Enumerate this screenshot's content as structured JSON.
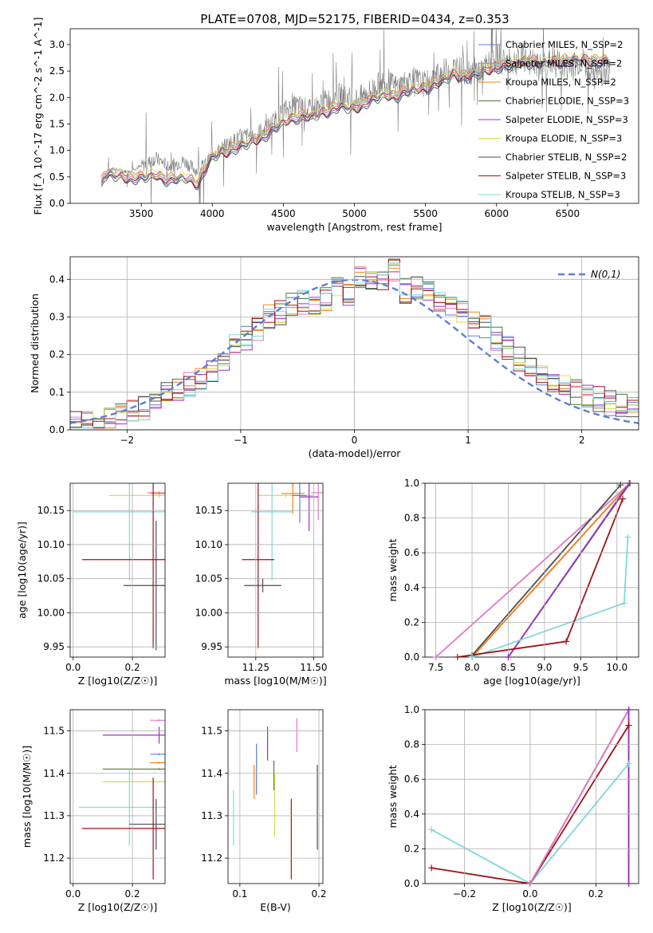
{
  "figure_title": "PLATE=0708, MJD=52175, FIBERID=0434, z=0.353",
  "model_colors": {
    "Chabrier MILES": "#5b7fd6",
    "Salpeter MILES": "#e377c2",
    "Kroupa MILES": "#ff7f0e",
    "Chabrier ELODIE": "#4b7a3a",
    "Salpeter ELODIE": "#9b30c8",
    "Kroupa ELODIE": "#d4e04a",
    "Chabrier STELIB": "#4d4d4d",
    "Salpeter STELIB": "#a50f15",
    "Kroupa STELIB": "#7fd8dc"
  },
  "chart_data": [
    {
      "id": "spectrum",
      "type": "line",
      "title": "PLATE=0708, MJD=52175, FIBERID=0434, z=0.353",
      "xlabel": "wavelength [Angstrom, rest frame]",
      "ylabel": "Flux [f_λ 10^-17 erg cm^-2 s^-1 A^-1]",
      "xlim": [
        3000,
        7000
      ],
      "ylim": [
        0,
        3.3
      ],
      "xticks": [
        3500,
        4000,
        4500,
        5000,
        5500,
        6000,
        6500
      ],
      "yticks": [
        0.0,
        0.5,
        1.0,
        1.5,
        2.0,
        2.5,
        3.0
      ],
      "grid": false,
      "legend_position": "right",
      "data_color": "#808080",
      "data_x": [
        3240,
        3300,
        3400,
        3500,
        3600,
        3700,
        3800,
        3900,
        4000,
        4100,
        4200,
        4300,
        4400,
        4500,
        4600,
        4700,
        4800,
        4900,
        5000,
        5100,
        5200,
        5300,
        5400,
        5500,
        5600,
        5700,
        5800,
        5900,
        6000,
        6100,
        6200,
        6300,
        6400,
        6500,
        6600,
        6700,
        6800
      ],
      "data_y": [
        0.55,
        0.65,
        0.6,
        0.7,
        0.85,
        0.7,
        0.8,
        0.6,
        0.9,
        1.1,
        1.25,
        1.3,
        1.45,
        1.75,
        1.85,
        1.75,
        1.95,
        2.05,
        1.95,
        2.1,
        2.3,
        2.2,
        2.35,
        2.25,
        2.45,
        2.55,
        2.5,
        2.5,
        2.75,
        2.65,
        2.75,
        2.55,
        2.7,
        2.55,
        2.7,
        2.45,
        2.5
      ],
      "series": [
        {
          "name": "Chabrier MILES, N_SSP=2",
          "color": "#5b7fd6"
        },
        {
          "name": "Salpeter MILES, N_SSP=2",
          "color": "#e377c2"
        },
        {
          "name": "Kroupa MILES, N_SSP=2",
          "color": "#ff7f0e"
        },
        {
          "name": "Chabrier ELODIE, N_SSP=3",
          "color": "#4b7a3a"
        },
        {
          "name": "Salpeter ELODIE, N_SSP=3",
          "color": "#9b30c8"
        },
        {
          "name": "Kroupa ELODIE, N_SSP=3",
          "color": "#d4e04a"
        },
        {
          "name": "Chabrier STELIB, N_SSP=2",
          "color": "#4d4d4d"
        },
        {
          "name": "Salpeter STELIB, N_SSP=3",
          "color": "#a50f15"
        },
        {
          "name": "Kroupa STELIB, N_SSP=3",
          "color": "#7fd8dc"
        }
      ],
      "model_x": [
        3220,
        3240,
        3300,
        3400,
        3500,
        3600,
        3700,
        3800,
        3900,
        4000,
        4100,
        4200,
        4300,
        4400,
        4500,
        4600,
        4700,
        4800,
        4900,
        5000,
        5100,
        5200,
        5300,
        5400,
        5500,
        5600,
        5700,
        5800,
        5900,
        6000,
        6100,
        6200,
        6300,
        6400,
        6500,
        6600,
        6700,
        6800
      ],
      "model_y": [
        0.4,
        0.55,
        0.55,
        0.5,
        0.5,
        0.55,
        0.45,
        0.5,
        0.4,
        0.9,
        1.0,
        1.1,
        1.2,
        1.35,
        1.55,
        1.65,
        1.65,
        1.75,
        1.85,
        1.8,
        1.95,
        2.05,
        2.05,
        2.15,
        2.2,
        2.3,
        2.45,
        2.4,
        2.5,
        2.6,
        2.6,
        2.7,
        2.65,
        2.7,
        2.7,
        2.75,
        2.7,
        2.7
      ]
    },
    {
      "id": "residuals",
      "type": "line",
      "xlabel": "(data-model)/error",
      "ylabel": "Normed distribution",
      "xlim": [
        -2.5,
        2.5
      ],
      "ylim": [
        0,
        0.46
      ],
      "xticks": [
        -2,
        -1,
        0,
        1,
        2
      ],
      "yticks": [
        0.0,
        0.1,
        0.2,
        0.3,
        0.4
      ],
      "grid": true,
      "legend_position": "top-right",
      "legend_label": "N(0,1)",
      "gauss_color": "#5b7fd6",
      "hist_bins": [
        -2.5,
        -2.4,
        -2.3,
        -2.2,
        -2.1,
        -2.0,
        -1.9,
        -1.8,
        -1.7,
        -1.6,
        -1.5,
        -1.4,
        -1.3,
        -1.2,
        -1.1,
        -1.0,
        -0.9,
        -0.8,
        -0.7,
        -0.6,
        -0.5,
        -0.4,
        -0.3,
        -0.2,
        -0.1,
        0.0,
        0.1,
        0.2,
        0.3,
        0.4,
        0.5,
        0.6,
        0.7,
        0.8,
        0.9,
        1.0,
        1.1,
        1.2,
        1.3,
        1.4,
        1.5,
        1.6,
        1.7,
        1.8,
        1.9,
        2.0,
        2.1,
        2.2,
        2.3,
        2.4
      ],
      "hist_values": [
        0.02,
        0.02,
        0.02,
        0.03,
        0.04,
        0.05,
        0.06,
        0.08,
        0.1,
        0.11,
        0.12,
        0.14,
        0.16,
        0.19,
        0.22,
        0.24,
        0.27,
        0.3,
        0.31,
        0.33,
        0.34,
        0.33,
        0.35,
        0.38,
        0.36,
        0.41,
        0.4,
        0.4,
        0.42,
        0.37,
        0.38,
        0.36,
        0.34,
        0.33,
        0.31,
        0.28,
        0.27,
        0.24,
        0.22,
        0.19,
        0.17,
        0.15,
        0.13,
        0.11,
        0.1,
        0.09,
        0.08,
        0.07,
        0.07,
        0.06
      ]
    },
    {
      "id": "age-vs-z",
      "type": "scatter",
      "xlabel": "Z [log10(Z/Z☉)]",
      "ylabel": "age  [log10(age/yr)]",
      "xlim": [
        -0.01,
        0.31
      ],
      "ylim": [
        9.935,
        10.19
      ],
      "xticks": [
        "0.0",
        "0.2"
      ],
      "yticks": [
        "9.95",
        "10.00",
        "10.05",
        "10.10",
        "10.15"
      ],
      "grid": true,
      "points": [
        {
          "model": "Kroupa STELIB",
          "x": 0.19,
          "y": 10.148,
          "xerr": 0.19,
          "yerr": 0.1
        },
        {
          "model": "Kroupa ELODIE",
          "x": 0.29,
          "y": 10.172,
          "xerr": 0.17,
          "yerr": 0.003
        },
        {
          "model": "Salpeter MILES",
          "x": 0.29,
          "y": 10.176,
          "xerr": 0.04,
          "yerr": 0.002
        },
        {
          "model": "Kroupa MILES",
          "x": 0.29,
          "y": 10.175,
          "xerr": 0.03,
          "yerr": 0.002
        },
        {
          "model": "Chabrier STELIB",
          "x": 0.28,
          "y": 10.04,
          "xerr": 0.11,
          "yerr": 0.095
        },
        {
          "model": "Salpeter STELIB",
          "x": 0.27,
          "y": 10.078,
          "xerr": 0.24,
          "yerr": 0.13
        }
      ]
    },
    {
      "id": "age-vs-mass",
      "type": "scatter",
      "xlabel": "mass [log10(M/M☉)]",
      "ylabel": "",
      "xlim": [
        11.13,
        11.54
      ],
      "ylim": [
        9.935,
        10.19
      ],
      "xticks": [
        "11.25",
        "11.50"
      ],
      "yticks": [
        "9.95",
        "10.00",
        "10.05",
        "10.10",
        "10.15"
      ],
      "grid": true,
      "points": [
        {
          "model": "Kroupa STELIB",
          "x": 11.32,
          "y": 10.148,
          "xerr": 0.09,
          "yerr": 0.1
        },
        {
          "model": "Kroupa ELODIE",
          "x": 11.38,
          "y": 10.172,
          "xerr": 0.12,
          "yerr": 0.003
        },
        {
          "model": "Salpeter MILES",
          "x": 11.52,
          "y": 10.176,
          "xerr": 0.03,
          "yerr": 0.04
        },
        {
          "model": "Kroupa MILES",
          "x": 11.41,
          "y": 10.175,
          "xerr": 0.05,
          "yerr": 0.03
        },
        {
          "model": "Salpeter ELODIE",
          "x": 11.48,
          "y": 10.17,
          "xerr": 0.04,
          "yerr": 0.05
        },
        {
          "model": "Chabrier MILES",
          "x": 11.44,
          "y": 10.172,
          "xerr": 0.03,
          "yerr": 0.04
        },
        {
          "model": "Chabrier STELIB",
          "x": 11.28,
          "y": 10.04,
          "xerr": 0.08,
          "yerr": 0.01
        },
        {
          "model": "Salpeter STELIB",
          "x": 11.26,
          "y": 10.078,
          "xerr": 0.07,
          "yerr": 0.13
        }
      ]
    },
    {
      "id": "mass-weight-vs-age",
      "type": "line",
      "xlabel": "age  [log10(age/yr)]",
      "ylabel": "mass weight",
      "xlim": [
        7.35,
        10.3
      ],
      "ylim": [
        0,
        1
      ],
      "xticks": [
        "7.5",
        "8.0",
        "8.5",
        "9.0",
        "9.5",
        "10.0"
      ],
      "yticks": [
        "0.0",
        "0.2",
        "0.4",
        "0.6",
        "0.8",
        "1.0"
      ],
      "grid": true,
      "lines": [
        {
          "model": "Salpeter MILES",
          "x": [
            7.5,
            10.18
          ],
          "y": [
            0.0,
            1.0
          ]
        },
        {
          "model": "Chabrier MILES",
          "x": [
            8.0,
            10.18
          ],
          "y": [
            0.0,
            1.0
          ]
        },
        {
          "model": "Kroupa MILES",
          "x": [
            8.0,
            10.18
          ],
          "y": [
            0.0,
            1.0
          ]
        },
        {
          "model": "Chabrier STELIB",
          "x": [
            8.0,
            10.05
          ],
          "y": [
            0.01,
            0.99
          ]
        },
        {
          "model": "Kroupa ELODIE",
          "x": [
            8.5,
            10.18
          ],
          "y": [
            0.0,
            1.0
          ]
        },
        {
          "model": "Chabrier ELODIE",
          "x": [
            8.5,
            10.18
          ],
          "y": [
            0.0,
            1.0
          ]
        },
        {
          "model": "Salpeter ELODIE",
          "x": [
            8.5,
            10.17
          ],
          "y": [
            0.0,
            1.0
          ]
        },
        {
          "model": "Kroupa STELIB",
          "x": [
            8.0,
            10.1,
            10.15
          ],
          "y": [
            0.0,
            0.31,
            0.69
          ]
        },
        {
          "model": "Salpeter STELIB",
          "x": [
            7.8,
            9.3,
            10.08
          ],
          "y": [
            0.0,
            0.09,
            0.91
          ]
        }
      ]
    },
    {
      "id": "mass-vs-z",
      "type": "scatter",
      "xlabel": "Z [log10(Z/Z☉)]",
      "ylabel": "mass [log10(M/M☉)]",
      "xlim": [
        -0.01,
        0.31
      ],
      "ylim": [
        11.14,
        11.55
      ],
      "xticks": [
        "0.0",
        "0.2"
      ],
      "yticks": [
        "11.2",
        "11.3",
        "11.4",
        "11.5"
      ],
      "grid": true,
      "points": [
        {
          "model": "Salpeter MILES",
          "x": 0.29,
          "y": 11.525,
          "xerr": 0.03,
          "yerr": 0.002
        },
        {
          "model": "Salpeter ELODIE",
          "x": 0.29,
          "y": 11.49,
          "xerr": 0.19,
          "yerr": 0.02
        },
        {
          "model": "Chabrier MILES",
          "x": 0.29,
          "y": 11.445,
          "xerr": 0.03,
          "yerr": 0.002
        },
        {
          "model": "Kroupa MILES",
          "x": 0.29,
          "y": 11.425,
          "xerr": 0.03,
          "yerr": 0.002
        },
        {
          "model": "Chabrier ELODIE",
          "x": 0.29,
          "y": 11.41,
          "xerr": 0.19,
          "yerr": 0.002
        },
        {
          "model": "Kroupa ELODIE",
          "x": 0.29,
          "y": 11.38,
          "xerr": 0.19,
          "yerr": 0.002
        },
        {
          "model": "Kroupa STELIB",
          "x": 0.19,
          "y": 11.32,
          "xerr": 0.17,
          "yerr": 0.09
        },
        {
          "model": "Chabrier STELIB",
          "x": 0.28,
          "y": 11.28,
          "xerr": 0.09,
          "yerr": 0.06
        },
        {
          "model": "Salpeter STELIB",
          "x": 0.27,
          "y": 11.27,
          "xerr": 0.24,
          "yerr": 0.12
        }
      ]
    },
    {
      "id": "mass-vs-ebv",
      "type": "scatter",
      "xlabel": "E(B-V)",
      "ylabel": "",
      "xlim": [
        0.085,
        0.205
      ],
      "ylim": [
        11.14,
        11.55
      ],
      "xticks": [
        "0.1",
        "0.2"
      ],
      "yticks": [
        "11.2",
        "11.3",
        "11.4",
        "11.5"
      ],
      "grid": true,
      "points": [
        {
          "model": "Kroupa STELIB",
          "x": 0.092,
          "y": 11.295,
          "yerr": 0.065
        },
        {
          "model": "Kroupa MILES",
          "x": 0.118,
          "y": 11.38,
          "yerr": 0.04
        },
        {
          "model": "Chabrier MILES",
          "x": 0.121,
          "y": 11.41,
          "yerr": 0.06
        },
        {
          "model": "Salpeter ELODIE",
          "x": 0.135,
          "y": 11.47,
          "yerr": 0.04
        },
        {
          "model": "Chabrier ELODIE",
          "x": 0.143,
          "y": 11.395,
          "yerr": 0.035
        },
        {
          "model": "Kroupa ELODIE",
          "x": 0.144,
          "y": 11.325,
          "yerr": 0.075
        },
        {
          "model": "Salpeter STELIB",
          "x": 0.165,
          "y": 11.245,
          "yerr": 0.095
        },
        {
          "model": "Salpeter MILES",
          "x": 0.172,
          "y": 11.49,
          "yerr": 0.04
        },
        {
          "model": "Chabrier STELIB",
          "x": 0.198,
          "y": 11.32,
          "yerr": 0.1
        }
      ]
    },
    {
      "id": "mass-weight-vs-z",
      "type": "line",
      "xlabel": "Z [log10(Z/Z☉)]",
      "ylabel": "mass weight",
      "xlim": [
        -0.32,
        0.33
      ],
      "ylim": [
        0,
        1
      ],
      "xticks": [
        "−0.2",
        "0.0",
        "0.2"
      ],
      "yticks": [
        "0.0",
        "0.2",
        "0.4",
        "0.6",
        "0.8",
        "1.0"
      ],
      "grid": true,
      "lines": [
        {
          "model": "Kroupa STELIB",
          "x": [
            -0.3,
            0.0,
            0.3
          ],
          "y": [
            0.31,
            0.0,
            0.69
          ]
        },
        {
          "model": "Salpeter STELIB",
          "x": [
            -0.3,
            0.0,
            0.3
          ],
          "y": [
            0.09,
            0.0,
            0.91
          ]
        },
        {
          "model": "Chabrier STELIB",
          "x": [
            0.0,
            0.3
          ],
          "y": [
            0.0,
            1.0
          ]
        },
        {
          "model": "Salpeter MILES",
          "x": [
            0.0,
            0.3
          ],
          "y": [
            0.0,
            1.0
          ]
        },
        {
          "model": "Kroupa ELODIE",
          "x": [
            0.3,
            0.3
          ],
          "y": [
            0.0,
            1.0
          ]
        },
        {
          "model": "Chabrier ELODIE",
          "x": [
            0.3,
            0.3
          ],
          "y": [
            0.0,
            1.0
          ]
        },
        {
          "model": "Salpeter ELODIE",
          "x": [
            0.3,
            0.3
          ],
          "y": [
            0.0,
            1.0
          ]
        }
      ]
    }
  ]
}
